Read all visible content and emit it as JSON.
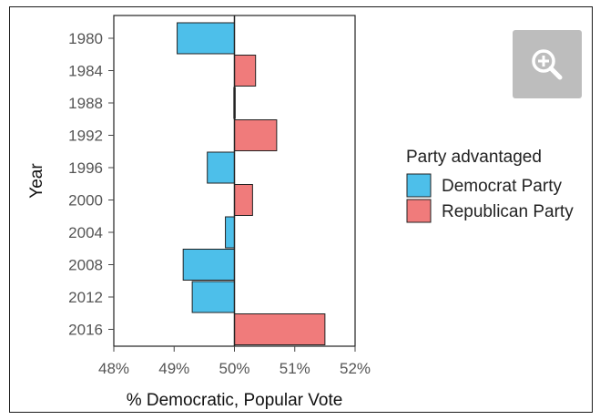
{
  "zoom_button": {
    "icon": "zoom-in-icon",
    "background": "#bdbdbd"
  },
  "chart_data": {
    "type": "bar",
    "orientation": "horizontal",
    "categories": [
      "1980",
      "1984",
      "1988",
      "1992",
      "1996",
      "2000",
      "2004",
      "2008",
      "2012",
      "2016"
    ],
    "values": [
      49.05,
      50.35,
      49.99,
      50.7,
      49.55,
      50.3,
      49.85,
      49.15,
      49.3,
      51.5
    ],
    "baseline": 50,
    "value_party": [
      "Democrat Party",
      "Republican Party",
      "Democrat Party",
      "Republican Party",
      "Democrat Party",
      "Republican Party",
      "Democrat Party",
      "Democrat Party",
      "Democrat Party",
      "Republican Party"
    ],
    "xlabel": "% Democratic, Popular Vote",
    "ylabel": "Year",
    "xlim": [
      48,
      52
    ],
    "xticks": [
      48,
      49,
      50,
      51,
      52
    ],
    "xtick_labels": [
      "48%",
      "49%",
      "50%",
      "51%",
      "52%"
    ],
    "grid": false,
    "legend": {
      "title": "Party advantaged",
      "placement": "right",
      "entries": [
        {
          "name": "Democrat Party",
          "color": "#4dbfea"
        },
        {
          "name": "Republican Party",
          "color": "#f07b7b"
        }
      ]
    },
    "colors": {
      "Democrat Party": "#4dbfea",
      "Republican Party": "#f07b7b"
    }
  }
}
